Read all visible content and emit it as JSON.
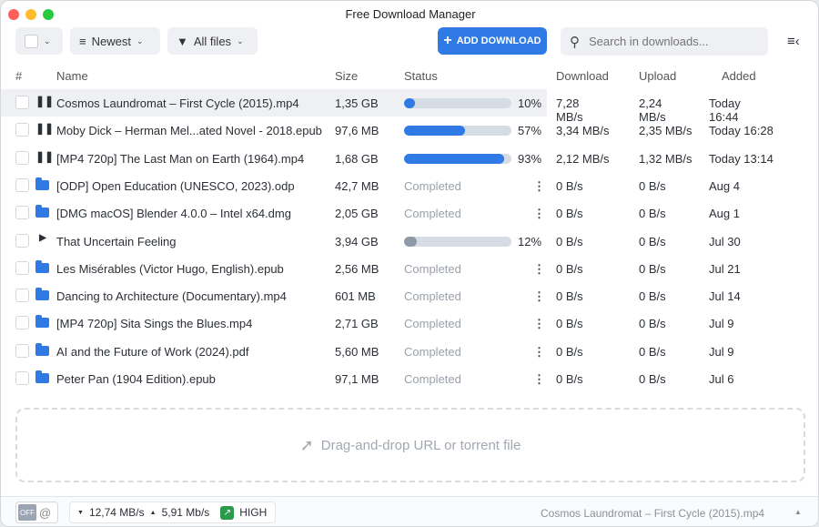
{
  "window": {
    "title": "Free Download Manager"
  },
  "toolbar": {
    "sort_label": "Newest",
    "filter_label": "All files",
    "add_label": "ADD DOWNLOAD",
    "search_placeholder": "Search in downloads..."
  },
  "columns": {
    "num": "#",
    "name": "Name",
    "size": "Size",
    "status": "Status",
    "download": "Download",
    "upload": "Upload",
    "added": "Added"
  },
  "rows": [
    {
      "state": "paused-active",
      "name": "Cosmos Laundromat – First Cycle (2015).mp4",
      "size": "1,35 GB",
      "progress": 10,
      "pct": "10%",
      "download": "7,28 MB/s",
      "upload": "2,24 MB/s",
      "added": "Today 16:44"
    },
    {
      "state": "paused-active",
      "name": "Moby Dick – Herman Mel...ated Novel - 2018.epub",
      "size": "97,6 MB",
      "progress": 57,
      "pct": "57%",
      "download": "3,34 MB/s",
      "upload": "2,35 MB/s",
      "added": "Today 16:28"
    },
    {
      "state": "paused-active",
      "name": "[MP4 720p] The Last Man on Earth (1964).mp4",
      "size": "1,68 GB",
      "progress": 93,
      "pct": "93%",
      "download": "2,12 MB/s",
      "upload": "1,32 MB/s",
      "added": "Today 13:14"
    },
    {
      "state": "completed",
      "name": "[ODP] Open Education (UNESCO, 2023).odp",
      "size": "42,7 MB",
      "status": "Completed",
      "download": "0 B/s",
      "upload": "0 B/s",
      "added": "Aug 4"
    },
    {
      "state": "completed",
      "name": "[DMG macOS] Blender 4.0.0 – Intel x64.dmg",
      "size": "2,05 GB",
      "status": "Completed",
      "download": "0 B/s",
      "upload": "0 B/s",
      "added": "Aug 1"
    },
    {
      "state": "stopped",
      "name": "That Uncertain Feeling",
      "size": "3,94 GB",
      "progress": 12,
      "pct": "12%",
      "download": "0 B/s",
      "upload": "0 B/s",
      "added": "Jul 30"
    },
    {
      "state": "completed",
      "name": "Les Misérables (Victor Hugo, English).epub",
      "size": "2,56 MB",
      "status": "Completed",
      "download": "0 B/s",
      "upload": "0 B/s",
      "added": "Jul 21"
    },
    {
      "state": "completed",
      "name": "Dancing to Architecture (Documentary).mp4",
      "size": "601 MB",
      "status": "Completed",
      "download": "0 B/s",
      "upload": "0 B/s",
      "added": "Jul 14"
    },
    {
      "state": "completed",
      "name": "[MP4 720p] Sita Sings the Blues.mp4",
      "size": "2,71 GB",
      "status": "Completed",
      "download": "0 B/s",
      "upload": "0 B/s",
      "added": "Jul 9"
    },
    {
      "state": "completed",
      "name": "AI and the Future of Work (2024).pdf",
      "size": "5,60 MB",
      "status": "Completed",
      "download": "0 B/s",
      "upload": "0 B/s",
      "added": "Jul 9"
    },
    {
      "state": "completed",
      "name": "Peter Pan (1904 Edition).epub",
      "size": "97,1 MB",
      "status": "Completed",
      "download": "0 B/s",
      "upload": "0 B/s",
      "added": "Jul 6"
    }
  ],
  "dropzone": {
    "label": "Drag-and-drop URL or torrent file"
  },
  "statusbar": {
    "snail_toggle": "OFF",
    "download_speed": "12,74 MB/s",
    "upload_speed": "5,91 Mb/s",
    "mode": "HIGH",
    "current": "Cosmos Laundromat – First Cycle (2015).mp4"
  },
  "colors": {
    "accent": "#2f7ae5",
    "mode_green": "#2a9a4b"
  }
}
